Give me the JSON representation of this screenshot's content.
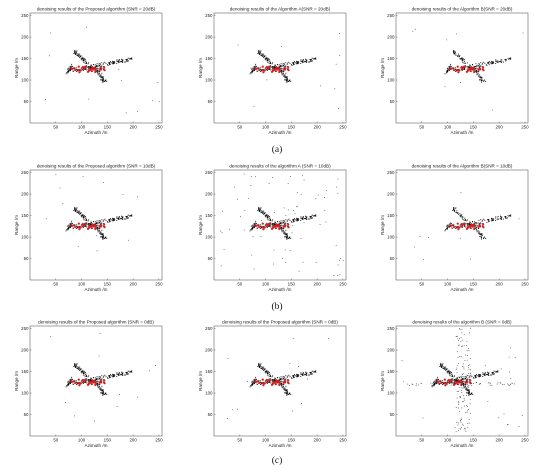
{
  "figure": {
    "row_captions": [
      "(a)",
      "(b)",
      "(c)"
    ]
  },
  "chart_data": [
    {
      "type": "scatter",
      "title": "denoising results of the Proposed algorithm (SNR = 20dB)",
      "xlabel": "Azimuth /m",
      "ylabel": "Range /m",
      "xlim": [
        0,
        256
      ],
      "ylim": [
        0,
        256
      ],
      "xticks": [
        50,
        100,
        150,
        200,
        250
      ],
      "yticks": [
        50,
        100,
        150,
        200,
        250
      ],
      "noise": "low"
    },
    {
      "type": "scatter",
      "title": "denoising results of the Algorithm A(SNR = 20dB)",
      "xlabel": "Azimuth /m",
      "ylabel": "Range /m",
      "xlim": [
        0,
        256
      ],
      "ylim": [
        0,
        256
      ],
      "xticks": [
        50,
        100,
        150,
        200,
        250
      ],
      "yticks": [
        50,
        100,
        150,
        200,
        250
      ],
      "noise": "low"
    },
    {
      "type": "scatter",
      "title": "denoising results of the Algorithm B(SNR = 20dB)",
      "xlabel": "Azimuth /m",
      "ylabel": "Range /m",
      "xlim": [
        0,
        256
      ],
      "ylim": [
        0,
        256
      ],
      "xticks": [
        50,
        100,
        150,
        200,
        250
      ],
      "yticks": [
        50,
        100,
        150,
        200,
        250
      ],
      "noise": "partial"
    },
    {
      "type": "scatter",
      "title": "denoising results of the Proposed algorithm (SNR = 10dB)",
      "xlabel": "Azimuth /m",
      "ylabel": "Range /m",
      "xlim": [
        0,
        256
      ],
      "ylim": [
        0,
        256
      ],
      "xticks": [
        50,
        100,
        150,
        200,
        250
      ],
      "yticks": [
        50,
        100,
        150,
        200,
        250
      ],
      "noise": "low"
    },
    {
      "type": "scatter",
      "title": "denoising results of the algorithm A (SNR = 10dB)",
      "xlabel": "Azimuth /m",
      "ylabel": "Range /m",
      "xlim": [
        0,
        256
      ],
      "ylim": [
        0,
        256
      ],
      "xticks": [
        50,
        100,
        150,
        200,
        250
      ],
      "yticks": [
        50,
        100,
        150,
        200,
        250
      ],
      "noise": "medium"
    },
    {
      "type": "scatter",
      "title": "denoising results of the Algorithm B(SNR = 10dB)",
      "xlabel": "Azimuth /m",
      "ylabel": "Range /m",
      "xlim": [
        0,
        256
      ],
      "ylim": [
        0,
        256
      ],
      "xticks": [
        50,
        100,
        150,
        200,
        250
      ],
      "yticks": [
        50,
        100,
        150,
        200,
        250
      ],
      "noise": "partial"
    },
    {
      "type": "scatter",
      "title": "denoising results of the Proposed algorithm (SNR = 0dB)",
      "xlabel": "Azimuth /m",
      "ylabel": "Range /m",
      "xlim": [
        0,
        256
      ],
      "ylim": [
        0,
        256
      ],
      "xticks": [
        50,
        100,
        150,
        200,
        250
      ],
      "yticks": [
        50,
        100,
        150,
        200,
        250
      ],
      "noise": "low"
    },
    {
      "type": "scatter",
      "title": "denoising results of the Proposed algorithm (SNR = 0dB)",
      "xlabel": "Azimuth /m",
      "ylabel": "Range /m",
      "xlim": [
        0,
        256
      ],
      "ylim": [
        0,
        256
      ],
      "xticks": [
        50,
        100,
        150,
        200,
        250
      ],
      "yticks": [
        50,
        100,
        150,
        200,
        250
      ],
      "noise": "low"
    },
    {
      "type": "scatter",
      "title": "denoising results of the algorithm B (SNR = 0dB)",
      "xlabel": "Azimuth /m",
      "ylabel": "Range /m",
      "xlim": [
        0,
        256
      ],
      "ylim": [
        0,
        256
      ],
      "xticks": [
        50,
        100,
        150,
        200,
        250
      ],
      "yticks": [
        50,
        100,
        150,
        200,
        250
      ],
      "noise": "high"
    }
  ]
}
